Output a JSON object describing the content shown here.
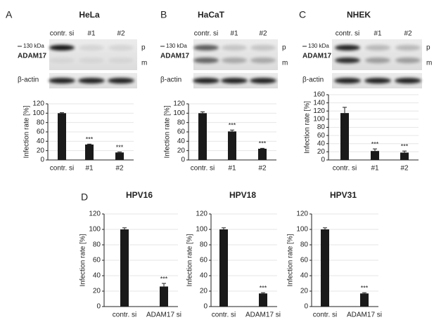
{
  "panels": [
    {
      "letter": "A",
      "title": "HeLa",
      "lanes": [
        "contr. si",
        "#1",
        "#2"
      ],
      "marker": "130 kDa",
      "protein": "ADAM17",
      "bands": [
        "p",
        "m"
      ],
      "loading": "β-actin"
    },
    {
      "letter": "B",
      "title": "HaCaT",
      "lanes": [
        "contr. si",
        "#1",
        "#2"
      ],
      "marker": "130 kDa",
      "protein": "ADAM17",
      "bands": [
        "p",
        "m"
      ],
      "loading": "β-actin"
    },
    {
      "letter": "C",
      "title": "NHEK",
      "lanes": [
        "contr. si",
        "#1",
        "#2"
      ],
      "marker": "130 kDa",
      "protein": "ADAM17",
      "bands": [
        "p",
        "m"
      ],
      "loading": "β-actin"
    },
    {
      "letter": "D"
    }
  ],
  "chart_data": [
    {
      "type": "bar",
      "ylabel": "Infection rate [%]",
      "categories": [
        "contr. si",
        "#1",
        "#2"
      ],
      "values": [
        100,
        33,
        16
      ],
      "errors": [
        1,
        1,
        1
      ],
      "significance": [
        null,
        "***",
        "***"
      ],
      "color": "#1a1a1a",
      "ylim": [
        0,
        120
      ],
      "yticks": [
        0,
        20,
        40,
        60,
        80,
        100,
        120
      ],
      "grid": true
    },
    {
      "type": "bar",
      "ylabel": "Infection rate [%]",
      "categories": [
        "contr. si",
        "#1",
        "#2"
      ],
      "values": [
        100,
        61,
        24
      ],
      "errors": [
        3,
        3,
        1
      ],
      "significance": [
        null,
        "***",
        "***"
      ],
      "color": "#1a1a1a",
      "ylim": [
        0,
        120
      ],
      "yticks": [
        0,
        20,
        40,
        60,
        80,
        100,
        120
      ],
      "grid": true
    },
    {
      "type": "bar",
      "ylabel": "Infection rate [%]",
      "categories": [
        "contr. si",
        "#1",
        "#2"
      ],
      "values": [
        115,
        22,
        18
      ],
      "errors": [
        14,
        5,
        4
      ],
      "significance": [
        null,
        "***",
        "***"
      ],
      "color": "#1a1a1a",
      "ylim": [
        0,
        160
      ],
      "yticks": [
        0,
        20,
        40,
        60,
        80,
        100,
        120,
        140,
        160
      ],
      "grid": true
    },
    {
      "type": "bar",
      "title": "HPV16",
      "ylabel": "Infection rate [%]",
      "categories": [
        "contr. si",
        "ADAM17 si"
      ],
      "values": [
        100,
        26
      ],
      "errors": [
        2,
        4
      ],
      "significance": [
        null,
        "***"
      ],
      "color": "#1a1a1a",
      "ylim": [
        0,
        120
      ],
      "yticks": [
        0,
        20,
        40,
        60,
        80,
        100,
        120
      ],
      "grid": true
    },
    {
      "type": "bar",
      "title": "HPV18",
      "ylabel": "Infection rate [%]",
      "categories": [
        "contr. si",
        "ADAM17 si"
      ],
      "values": [
        100,
        17
      ],
      "errors": [
        2,
        1
      ],
      "significance": [
        null,
        "***"
      ],
      "color": "#1a1a1a",
      "ylim": [
        0,
        120
      ],
      "yticks": [
        0,
        20,
        40,
        60,
        80,
        100,
        120
      ],
      "grid": true
    },
    {
      "type": "bar",
      "title": "HPV31",
      "ylabel": "Infection rate [%]",
      "categories": [
        "contr. si",
        "ADAM17 si"
      ],
      "values": [
        100,
        17
      ],
      "errors": [
        2,
        1
      ],
      "significance": [
        null,
        "***"
      ],
      "color": "#1a1a1a",
      "ylim": [
        0,
        120
      ],
      "yticks": [
        0,
        20,
        40,
        60,
        80,
        100,
        120
      ],
      "grid": true
    }
  ]
}
